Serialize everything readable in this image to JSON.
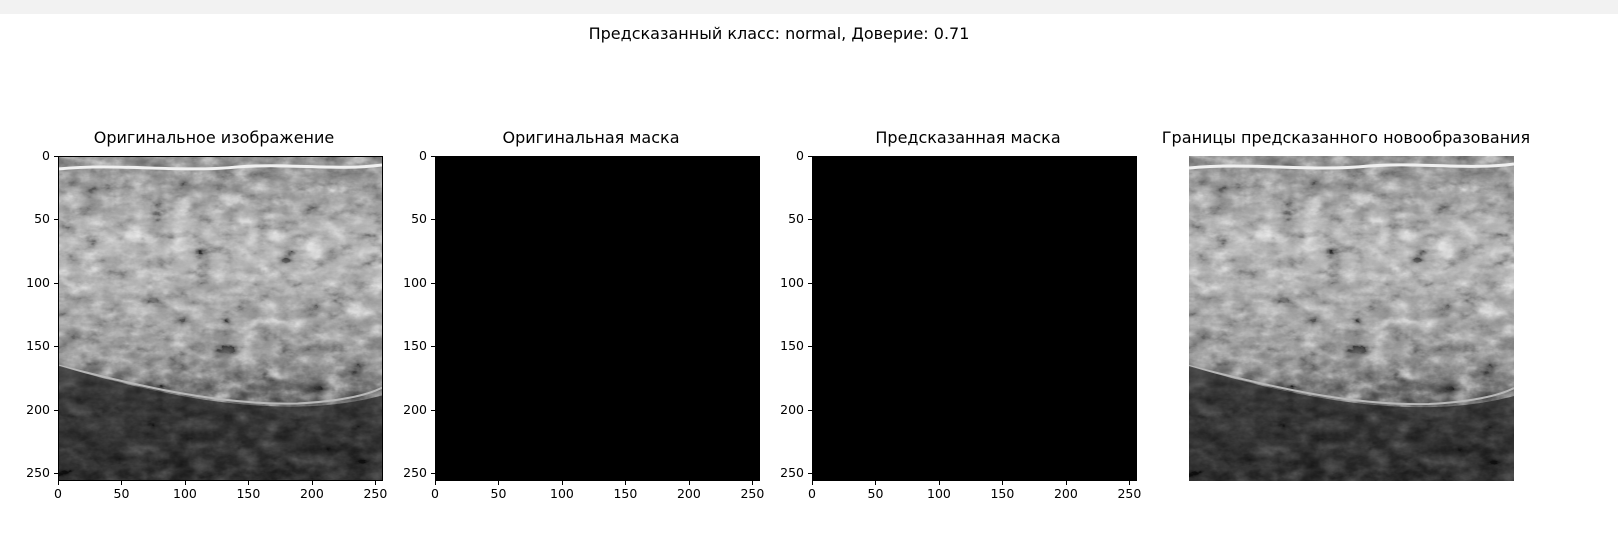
{
  "figure": {
    "suptitle": "Предсказанный класс: normal, Доверие: 0.71"
  },
  "chart_data": [
    {
      "type": "image",
      "title": "Оригинальное изображение",
      "content": "grayscale ultrasound image",
      "xlim": [
        0,
        256
      ],
      "ylim": [
        256,
        0
      ],
      "xticks": [
        0,
        50,
        100,
        150,
        200,
        250
      ],
      "yticks": [
        0,
        50,
        100,
        150,
        200,
        250
      ],
      "axes": "on"
    },
    {
      "type": "image",
      "title": "Оригинальная маска",
      "content": "all-black mask",
      "xlim": [
        0,
        256
      ],
      "ylim": [
        256,
        0
      ],
      "xticks": [
        0,
        50,
        100,
        150,
        200,
        250
      ],
      "yticks": [
        0,
        50,
        100,
        150,
        200,
        250
      ],
      "axes": "on"
    },
    {
      "type": "image",
      "title": "Предсказанная маска",
      "content": "all-black mask",
      "xlim": [
        0,
        256
      ],
      "ylim": [
        256,
        0
      ],
      "xticks": [
        0,
        50,
        100,
        150,
        200,
        250
      ],
      "yticks": [
        0,
        50,
        100,
        150,
        200,
        250
      ],
      "axes": "on"
    },
    {
      "type": "image",
      "title": "Границы предсказанного новообразования",
      "content": "grayscale ultrasound image without contour",
      "axes": "off"
    }
  ],
  "colors": {
    "mask": "#000000",
    "topbar": "#f2f2f2"
  }
}
